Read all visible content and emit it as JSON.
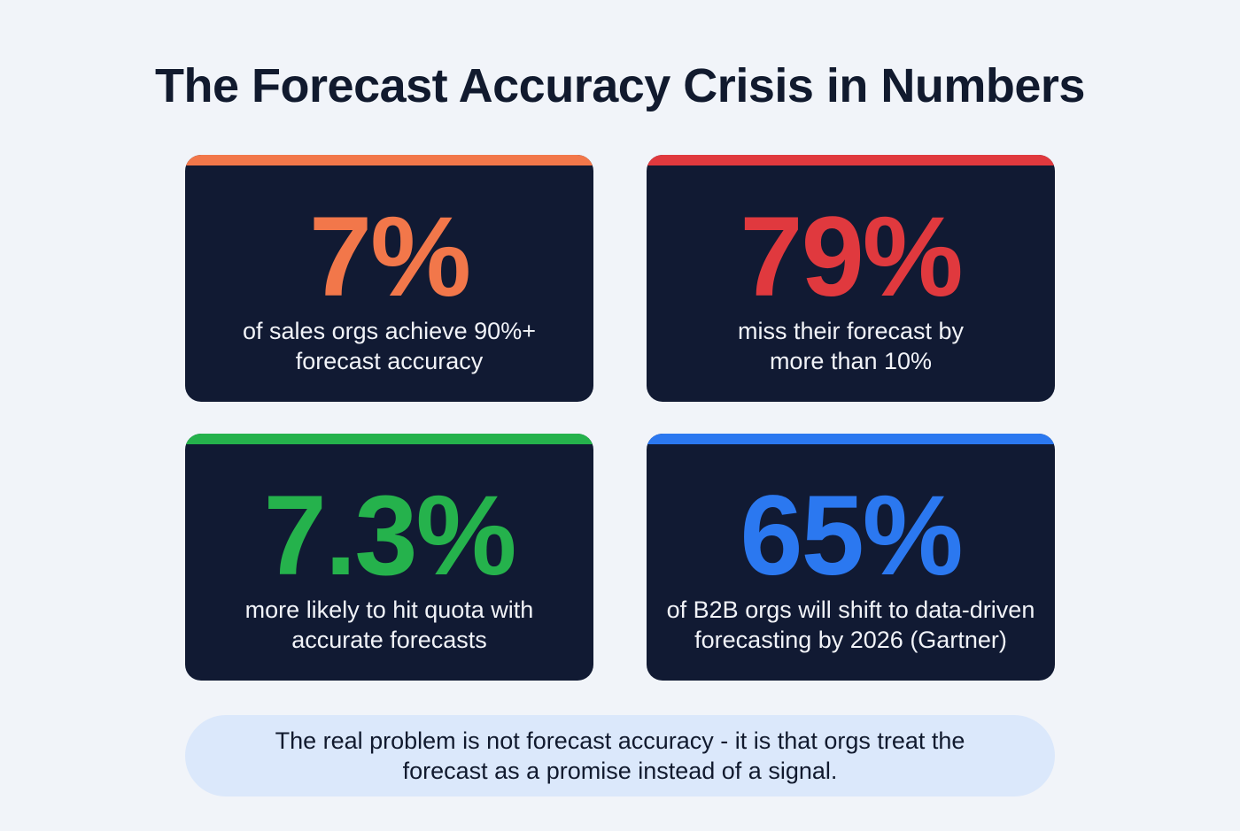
{
  "title": "The Forecast Accuracy Crisis in Numbers",
  "cards": [
    {
      "value": "7%",
      "description": "of sales orgs achieve 90%+ forecast accuracy",
      "color": "#f2774a"
    },
    {
      "value": "79%",
      "description": "miss their forecast by more than 10%",
      "color": "#e0393e"
    },
    {
      "value": "7.3%",
      "description": "more likely to hit quota with accurate forecasts",
      "color": "#25b24c"
    },
    {
      "value": "65%",
      "description": "of B2B orgs will shift to data-driven forecasting by 2026 (Gartner)",
      "color": "#2b78f0"
    }
  ],
  "callout": "The real problem is not forecast accuracy - it is that orgs treat the forecast as a promise instead of a signal."
}
